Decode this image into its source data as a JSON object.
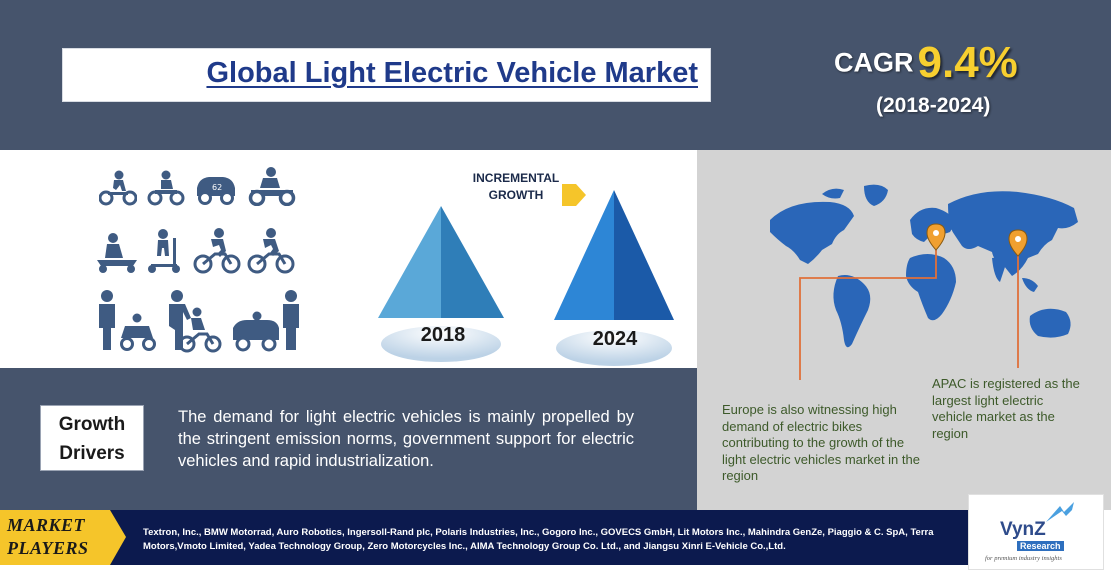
{
  "header": {
    "title": "Global Light Electric Vehicle Market",
    "cagr_label": "CAGR",
    "cagr_value": "9.4%",
    "cagr_period": "(2018-2024)"
  },
  "growth": {
    "incremental_label_1": "INCREMENTAL",
    "incremental_label_2": "GROWTH",
    "year_start": "2018",
    "year_end": "2024"
  },
  "icons": [
    "kick-bike-icon",
    "balance-bike-icon",
    "toy-car-icon",
    "kids-atv-icon",
    "kids-scooter-icon",
    "kick-scooter-icon",
    "bicycle-rider-icon",
    "cyclist-icon",
    "parent-with-kids-car-icon",
    "parent-helping-child-bike-icon",
    "parent-with-toy-car-icon"
  ],
  "drivers": {
    "label_1": "Growth",
    "label_2": "Drivers",
    "text": "The demand for light electric vehicles is mainly propelled by the stringent emission norms, government support for electric vehicles and rapid industrialization."
  },
  "map": {
    "europe_note": "Europe is also witnessing high demand of electric bikes contributing to the growth of the light electric vehicles market in the region",
    "apac_note": "APAC is registered as the largest light electric vehicle market as the region",
    "pin_color": "#f0a030",
    "line_color": "#e0703a"
  },
  "market_players": {
    "label_1": "MARKET",
    "label_2": "PLAYERS",
    "text": "Textron, Inc., BMW Motorrad, Auro Robotics, Ingersoll-Rand plc, Polaris Industries, Inc., Gogoro Inc., GOVECS GmbH, Lit Motors Inc., Mahindra GenZe, Piaggio & C. SpA, Terra Motors,Vmoto Limited, Yadea Technology Group, Zero Motorcycles Inc., AIMA Technology Group Co. Ltd., and Jiangsu Xinri E-Vehicle Co.,Ltd."
  },
  "logo": {
    "name": "VynZ",
    "sub": "Research",
    "tagline": "for premium industry insights"
  },
  "colors": {
    "banner": "#46546c",
    "title_blue": "#1f3a8a",
    "cagr_yellow": "#f7cf2f",
    "pyramid_2018": "#3a8ec7",
    "pyramid_2024": "#1f6fc5",
    "strip": "#0c1a4e",
    "tag_yellow": "#f5c52a"
  }
}
